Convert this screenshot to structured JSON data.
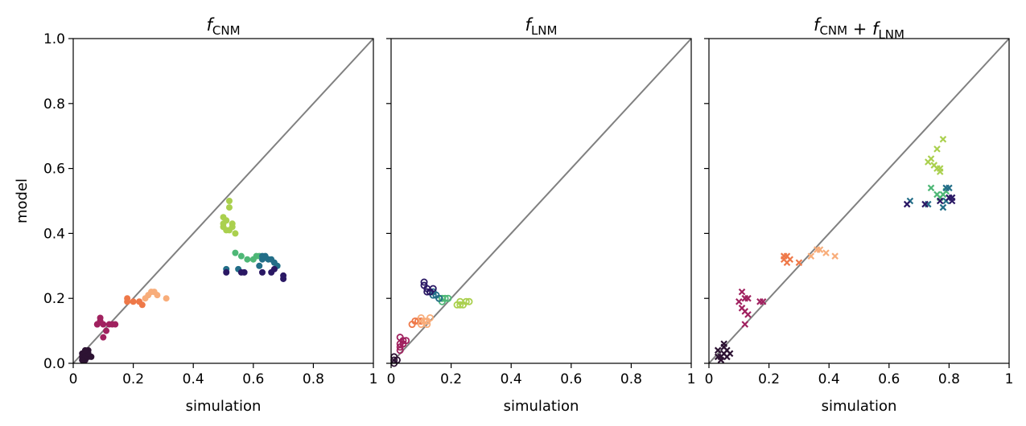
{
  "chart_data": [
    {
      "type": "scatter",
      "title_main": "f",
      "title_parts": [
        {
          "text": "f",
          "italic": true,
          "sub": "CNM"
        }
      ],
      "xlabel": "simulation",
      "ylabel": "model",
      "xlim": [
        0,
        1
      ],
      "ylim": [
        0,
        1
      ],
      "xticks": [
        "0",
        "0.2",
        "0.4",
        "0.6",
        "0.8",
        "1"
      ],
      "yticks": [
        "0.0",
        "0.2",
        "0.4",
        "0.6",
        "0.8",
        "1.0"
      ],
      "marker": "filled-circle",
      "groups": [
        {
          "color": "#2d1333",
          "points": [
            [
              0.03,
              0.02
            ],
            [
              0.04,
              0.03
            ],
            [
              0.05,
              0.02
            ],
            [
              0.04,
              0.01
            ],
            [
              0.03,
              0.03
            ],
            [
              0.05,
              0.04
            ],
            [
              0.04,
              0.02
            ],
            [
              0.06,
              0.02
            ],
            [
              0.05,
              0.03
            ],
            [
              0.04,
              0.04
            ],
            [
              0.03,
              0.01
            ]
          ]
        },
        {
          "color": "#a0215f",
          "points": [
            [
              0.08,
              0.12
            ],
            [
              0.09,
              0.13
            ],
            [
              0.1,
              0.12
            ],
            [
              0.11,
              0.1
            ],
            [
              0.1,
              0.08
            ],
            [
              0.12,
              0.12
            ],
            [
              0.13,
              0.12
            ],
            [
              0.14,
              0.12
            ],
            [
              0.09,
              0.14
            ],
            [
              0.08,
              0.12
            ]
          ]
        },
        {
          "color": "#ee7848",
          "points": [
            [
              0.18,
              0.2
            ],
            [
              0.18,
              0.19
            ],
            [
              0.2,
              0.19
            ],
            [
              0.22,
              0.19
            ],
            [
              0.23,
              0.18
            ]
          ]
        },
        {
          "color": "#f8ad7a",
          "points": [
            [
              0.25,
              0.21
            ],
            [
              0.26,
              0.22
            ],
            [
              0.27,
              0.22
            ],
            [
              0.28,
              0.21
            ],
            [
              0.31,
              0.2
            ],
            [
              0.24,
              0.2
            ]
          ]
        },
        {
          "color": "#aad04e",
          "points": [
            [
              0.5,
              0.45
            ],
            [
              0.5,
              0.43
            ],
            [
              0.51,
              0.44
            ],
            [
              0.52,
              0.5
            ],
            [
              0.52,
              0.48
            ],
            [
              0.53,
              0.43
            ],
            [
              0.54,
              0.4
            ],
            [
              0.5,
              0.42
            ],
            [
              0.51,
              0.41
            ],
            [
              0.52,
              0.41
            ],
            [
              0.53,
              0.42
            ]
          ]
        },
        {
          "color": "#4eb776",
          "points": [
            [
              0.54,
              0.34
            ],
            [
              0.56,
              0.33
            ],
            [
              0.6,
              0.32
            ],
            [
              0.61,
              0.33
            ],
            [
              0.62,
              0.33
            ],
            [
              0.58,
              0.32
            ]
          ]
        },
        {
          "color": "#236e88",
          "points": [
            [
              0.51,
              0.29
            ],
            [
              0.55,
              0.29
            ],
            [
              0.62,
              0.3
            ],
            [
              0.63,
              0.32
            ],
            [
              0.64,
              0.33
            ],
            [
              0.65,
              0.32
            ],
            [
              0.66,
              0.32
            ],
            [
              0.67,
              0.31
            ],
            [
              0.68,
              0.3
            ],
            [
              0.63,
              0.33
            ]
          ]
        },
        {
          "color": "#2a1864",
          "points": [
            [
              0.51,
              0.28
            ],
            [
              0.56,
              0.28
            ],
            [
              0.57,
              0.28
            ],
            [
              0.63,
              0.28
            ],
            [
              0.66,
              0.28
            ],
            [
              0.67,
              0.29
            ],
            [
              0.7,
              0.27
            ],
            [
              0.7,
              0.26
            ]
          ]
        }
      ]
    },
    {
      "type": "scatter",
      "title_parts": [
        {
          "text": "f",
          "italic": true,
          "sub": "LNM"
        }
      ],
      "xlabel": "simulation",
      "ylabel": "",
      "xlim": [
        0,
        1
      ],
      "ylim": [
        0,
        1
      ],
      "xticks": [
        "0",
        "0.2",
        "0.4",
        "0.6",
        "0.8",
        "1"
      ],
      "yticks": [
        "",
        "",
        "",
        "",
        "",
        ""
      ],
      "marker": "open-circle",
      "groups": [
        {
          "color": "#2d1333",
          "points": [
            [
              0.01,
              0.01
            ],
            [
              0.01,
              0.0
            ],
            [
              0.02,
              0.01
            ],
            [
              0.01,
              0.02
            ]
          ]
        },
        {
          "color": "#a0215f",
          "points": [
            [
              0.03,
              0.05
            ],
            [
              0.03,
              0.06
            ],
            [
              0.04,
              0.07
            ],
            [
              0.05,
              0.07
            ],
            [
              0.03,
              0.08
            ],
            [
              0.04,
              0.06
            ],
            [
              0.03,
              0.04
            ]
          ]
        },
        {
          "color": "#ee7848",
          "points": [
            [
              0.07,
              0.12
            ],
            [
              0.08,
              0.13
            ],
            [
              0.09,
              0.13
            ],
            [
              0.1,
              0.13
            ]
          ]
        },
        {
          "color": "#f8ad7a",
          "points": [
            [
              0.1,
              0.14
            ],
            [
              0.11,
              0.13
            ],
            [
              0.12,
              0.13
            ],
            [
              0.13,
              0.14
            ],
            [
              0.1,
              0.12
            ],
            [
              0.12,
              0.12
            ]
          ]
        },
        {
          "color": "#aad04e",
          "points": [
            [
              0.22,
              0.18
            ],
            [
              0.23,
              0.18
            ],
            [
              0.24,
              0.18
            ],
            [
              0.25,
              0.19
            ],
            [
              0.26,
              0.19
            ],
            [
              0.23,
              0.19
            ]
          ]
        },
        {
          "color": "#4eb776",
          "points": [
            [
              0.16,
              0.2
            ],
            [
              0.17,
              0.19
            ],
            [
              0.18,
              0.2
            ],
            [
              0.19,
              0.2
            ],
            [
              0.17,
              0.2
            ]
          ]
        },
        {
          "color": "#236e88",
          "points": [
            [
              0.13,
              0.22
            ],
            [
              0.14,
              0.22
            ],
            [
              0.15,
              0.21
            ],
            [
              0.16,
              0.2
            ],
            [
              0.14,
              0.21
            ]
          ]
        },
        {
          "color": "#2a1864",
          "points": [
            [
              0.11,
              0.25
            ],
            [
              0.11,
              0.24
            ],
            [
              0.12,
              0.23
            ],
            [
              0.12,
              0.22
            ],
            [
              0.13,
              0.22
            ],
            [
              0.14,
              0.23
            ]
          ]
        }
      ]
    },
    {
      "type": "scatter",
      "title_parts": [
        {
          "text": "f",
          "italic": true,
          "sub": "CNM"
        },
        {
          "text": " + ",
          "italic": false,
          "sub": ""
        },
        {
          "text": "f",
          "italic": true,
          "sub": "LNM"
        }
      ],
      "xlabel": "simulation",
      "ylabel": "",
      "xlim": [
        0,
        1
      ],
      "ylim": [
        0,
        1
      ],
      "xticks": [
        "0",
        "0.2",
        "0.4",
        "0.6",
        "0.8",
        "1"
      ],
      "yticks": [
        "",
        "",
        "",
        "",
        "",
        ""
      ],
      "marker": "x",
      "groups": [
        {
          "color": "#2d1333",
          "points": [
            [
              0.03,
              0.04
            ],
            [
              0.04,
              0.02
            ],
            [
              0.05,
              0.03
            ],
            [
              0.06,
              0.04
            ],
            [
              0.05,
              0.05
            ],
            [
              0.04,
              0.01
            ],
            [
              0.06,
              0.02
            ],
            [
              0.07,
              0.03
            ],
            [
              0.05,
              0.06
            ],
            [
              0.03,
              0.02
            ]
          ]
        },
        {
          "color": "#a0215f",
          "points": [
            [
              0.1,
              0.19
            ],
            [
              0.11,
              0.22
            ],
            [
              0.12,
              0.2
            ],
            [
              0.13,
              0.2
            ],
            [
              0.11,
              0.17
            ],
            [
              0.12,
              0.16
            ],
            [
              0.13,
              0.15
            ],
            [
              0.17,
              0.19
            ],
            [
              0.18,
              0.19
            ],
            [
              0.12,
              0.12
            ]
          ]
        },
        {
          "color": "#ee7848",
          "points": [
            [
              0.25,
              0.33
            ],
            [
              0.26,
              0.33
            ],
            [
              0.25,
              0.32
            ],
            [
              0.27,
              0.32
            ],
            [
              0.3,
              0.31
            ],
            [
              0.26,
              0.31
            ]
          ]
        },
        {
          "color": "#f8ad7a",
          "points": [
            [
              0.34,
              0.33
            ],
            [
              0.36,
              0.35
            ],
            [
              0.37,
              0.35
            ],
            [
              0.39,
              0.34
            ],
            [
              0.42,
              0.33
            ]
          ]
        },
        {
          "color": "#aad04e",
          "points": [
            [
              0.73,
              0.62
            ],
            [
              0.74,
              0.63
            ],
            [
              0.75,
              0.61
            ],
            [
              0.76,
              0.6
            ],
            [
              0.77,
              0.6
            ],
            [
              0.77,
              0.59
            ],
            [
              0.76,
              0.66
            ],
            [
              0.78,
              0.69
            ]
          ]
        },
        {
          "color": "#4eb776",
          "points": [
            [
              0.74,
              0.54
            ],
            [
              0.76,
              0.52
            ],
            [
              0.78,
              0.52
            ],
            [
              0.79,
              0.53
            ],
            [
              0.77,
              0.51
            ]
          ]
        },
        {
          "color": "#236e88",
          "points": [
            [
              0.67,
              0.5
            ],
            [
              0.73,
              0.49
            ],
            [
              0.79,
              0.54
            ],
            [
              0.8,
              0.54
            ],
            [
              0.79,
              0.5
            ],
            [
              0.78,
              0.48
            ]
          ]
        },
        {
          "color": "#2a1864",
          "points": [
            [
              0.66,
              0.49
            ],
            [
              0.72,
              0.49
            ],
            [
              0.77,
              0.5
            ],
            [
              0.8,
              0.51
            ],
            [
              0.81,
              0.5
            ],
            [
              0.81,
              0.51
            ]
          ]
        }
      ]
    }
  ],
  "styles": {
    "diagonal_color": "#808080",
    "axis_color": "#000000"
  }
}
